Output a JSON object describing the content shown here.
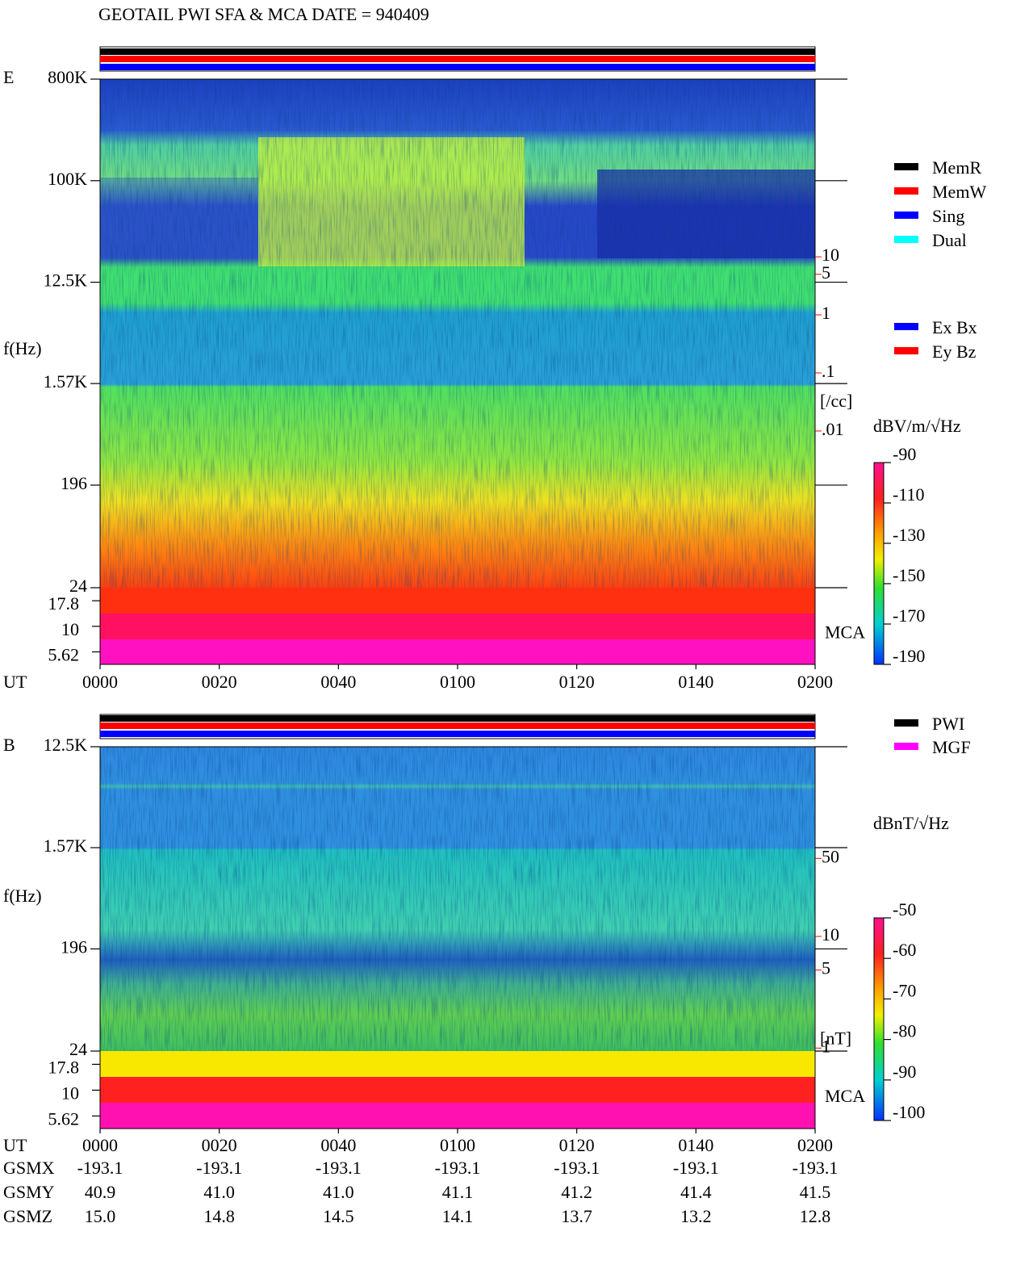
{
  "title": "GEOTAIL  PWI SFA & MCA   DATE = 940409",
  "chart_data": [
    {
      "type": "spectrogram",
      "panel": "E",
      "y_label": "f(Hz)",
      "x_label": "UT",
      "xlim": [
        0,
        120
      ],
      "xticks": [
        {
          "value": 0,
          "label": "0000"
        },
        {
          "value": 20,
          "label": "0020"
        },
        {
          "value": 40,
          "label": "0040"
        },
        {
          "value": 60,
          "label": "0100"
        },
        {
          "value": 80,
          "label": "0120"
        },
        {
          "value": 100,
          "label": "0140"
        },
        {
          "value": 120,
          "label": "0200"
        }
      ],
      "log_y": true,
      "ylim": [
        24,
        800000
      ],
      "yticks": [
        {
          "value": 800000,
          "label": "800K"
        },
        {
          "value": 100000,
          "label": "100K"
        },
        {
          "value": 12500,
          "label": "12.5K"
        },
        {
          "value": 1570,
          "label": "1.57K"
        },
        196,
        24
      ],
      "mca_label": "MCA",
      "mca_ticks": [
        17.8,
        10,
        5.62
      ],
      "y2lim": [
        2e-05,
        11500
      ],
      "y2ticks": [
        10,
        5,
        1,
        {
          "value": 0.1,
          "label": ".1"
        },
        {
          "value": 0.01,
          "label": ".01"
        }
      ],
      "y2_label": "[/cc]",
      "y2_color": "#ff0000",
      "colorbar": {
        "label": "dBV/m/√Hz",
        "lim": [
          -190,
          -90
        ],
        "ticks": [
          -90,
          -110,
          -130,
          -150,
          -170,
          -190
        ]
      },
      "legend": [
        {
          "name": "MemR",
          "color": "#000000"
        },
        {
          "name": "MemW",
          "color": "#ff0000"
        },
        {
          "name": "Sing",
          "color": "#0000ff"
        },
        {
          "name": "Dual",
          "color": "#00ffff"
        }
      ],
      "legend2": [
        {
          "name": "Ex Bx",
          "color": "#0000ff"
        },
        {
          "name": "Ey Bz",
          "color": "#ff0000"
        }
      ]
    },
    {
      "type": "spectrogram",
      "panel": "B",
      "y_label": "f(Hz)",
      "x_label": "UT",
      "xlim": [
        0,
        120
      ],
      "xticks": [
        {
          "value": 0,
          "label": "0000"
        },
        {
          "value": 20,
          "label": "0020"
        },
        {
          "value": 40,
          "label": "0040"
        },
        {
          "value": 60,
          "label": "0100"
        },
        {
          "value": 80,
          "label": "0120"
        },
        {
          "value": 100,
          "label": "0140"
        },
        {
          "value": 120,
          "label": "0200"
        }
      ],
      "log_y": true,
      "ylim": [
        24,
        12500
      ],
      "yticks": [
        {
          "value": 12500,
          "label": "12.5K"
        },
        {
          "value": 1570,
          "label": "1.57K"
        },
        196,
        24
      ],
      "mca_label": "MCA",
      "mca_ticks": [
        17.8,
        10,
        5.62
      ],
      "y2lim": [
        0.94,
        500
      ],
      "y2ticks": [
        50,
        10,
        5,
        1
      ],
      "y2_label": "[nT]",
      "y2_color": "#ff0000",
      "colorbar": {
        "label": "dBnT/√Hz",
        "lim": [
          -100,
          -50
        ],
        "ticks": [
          -50,
          -60,
          -70,
          -80,
          -90,
          -100
        ]
      },
      "legend": [
        {
          "name": "PWI",
          "color": "#000000"
        },
        {
          "name": "MGF",
          "color": "#ff00ff"
        }
      ]
    }
  ],
  "orbit": {
    "rows": [
      {
        "name": "GSMX",
        "values": [
          "-193.1",
          "-193.1",
          "-193.1",
          "-193.1",
          "-193.1",
          "-193.1",
          "-193.1"
        ]
      },
      {
        "name": "GSMY",
        "values": [
          "40.9",
          "41.0",
          "41.0",
          "41.1",
          "41.2",
          "41.4",
          "41.5"
        ]
      },
      {
        "name": "GSMZ",
        "values": [
          "15.0",
          "14.8",
          "14.5",
          "14.1",
          "13.7",
          "13.2",
          "12.8"
        ]
      }
    ]
  }
}
